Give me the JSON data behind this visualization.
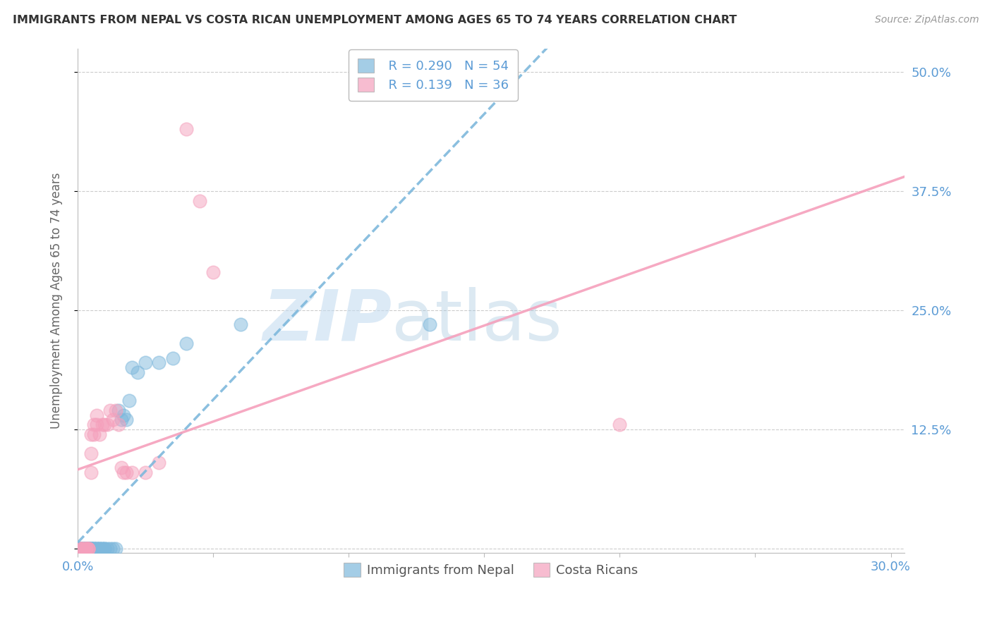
{
  "title": "IMMIGRANTS FROM NEPAL VS COSTA RICAN UNEMPLOYMENT AMONG AGES 65 TO 74 YEARS CORRELATION CHART",
  "source": "Source: ZipAtlas.com",
  "ylabel": "Unemployment Among Ages 65 to 74 years",
  "xlim": [
    0.0,
    0.305
  ],
  "ylim": [
    -0.005,
    0.525
  ],
  "xtick_positions": [
    0.0,
    0.05,
    0.1,
    0.15,
    0.2,
    0.25,
    0.3
  ],
  "xticklabels": [
    "0.0%",
    "",
    "",
    "",
    "",
    "",
    "30.0%"
  ],
  "ytick_positions": [
    0.0,
    0.125,
    0.25,
    0.375,
    0.5
  ],
  "ytick_labels_right": [
    "",
    "12.5%",
    "25.0%",
    "37.5%",
    "50.0%"
  ],
  "nepal_color": "#7eb8dc",
  "costa_rica_color": "#f5a0bc",
  "nepal_R": 0.29,
  "nepal_N": 54,
  "costa_rica_R": 0.139,
  "costa_rica_N": 36,
  "nepal_points_x": [
    0.001,
    0.001,
    0.001,
    0.001,
    0.002,
    0.002,
    0.002,
    0.002,
    0.003,
    0.003,
    0.003,
    0.003,
    0.004,
    0.004,
    0.004,
    0.004,
    0.004,
    0.004,
    0.005,
    0.005,
    0.005,
    0.005,
    0.005,
    0.006,
    0.006,
    0.006,
    0.006,
    0.007,
    0.007,
    0.007,
    0.008,
    0.008,
    0.008,
    0.009,
    0.009,
    0.01,
    0.01,
    0.011,
    0.012,
    0.013,
    0.014,
    0.015,
    0.016,
    0.017,
    0.018,
    0.019,
    0.02,
    0.022,
    0.025,
    0.03,
    0.035,
    0.04,
    0.06,
    0.13
  ],
  "nepal_points_y": [
    0.0,
    0.0,
    0.0,
    0.0,
    0.0,
    0.0,
    0.0,
    0.0,
    0.0,
    0.0,
    0.0,
    0.0,
    0.0,
    0.0,
    0.0,
    0.0,
    0.0,
    0.0,
    0.0,
    0.0,
    0.0,
    0.0,
    0.0,
    0.0,
    0.0,
    0.0,
    0.0,
    0.0,
    0.0,
    0.0,
    0.0,
    0.0,
    0.0,
    0.0,
    0.0,
    0.0,
    0.0,
    0.0,
    0.0,
    0.0,
    0.0,
    0.145,
    0.135,
    0.14,
    0.135,
    0.155,
    0.19,
    0.185,
    0.195,
    0.195,
    0.2,
    0.215,
    0.235,
    0.235
  ],
  "costa_rica_points_x": [
    0.001,
    0.001,
    0.001,
    0.002,
    0.002,
    0.003,
    0.003,
    0.003,
    0.004,
    0.004,
    0.004,
    0.005,
    0.005,
    0.005,
    0.006,
    0.006,
    0.007,
    0.007,
    0.008,
    0.009,
    0.01,
    0.011,
    0.012,
    0.013,
    0.014,
    0.015,
    0.016,
    0.017,
    0.018,
    0.02,
    0.025,
    0.03,
    0.04,
    0.045,
    0.05,
    0.2
  ],
  "costa_rica_points_y": [
    0.0,
    0.0,
    0.0,
    0.0,
    0.0,
    0.0,
    0.0,
    0.0,
    0.0,
    0.0,
    0.0,
    0.08,
    0.1,
    0.12,
    0.12,
    0.13,
    0.13,
    0.14,
    0.12,
    0.13,
    0.13,
    0.13,
    0.145,
    0.135,
    0.145,
    0.13,
    0.085,
    0.08,
    0.08,
    0.08,
    0.08,
    0.09,
    0.44,
    0.365,
    0.29,
    0.13
  ],
  "watermark_zip": "ZIP",
  "watermark_atlas": "atlas",
  "background_color": "#FFFFFF",
  "grid_color": "#CCCCCC",
  "tick_label_color": "#5B9BD5",
  "ylabel_color": "#666666",
  "title_color": "#333333",
  "source_color": "#999999",
  "legend_text_color": "#5B9BD5"
}
